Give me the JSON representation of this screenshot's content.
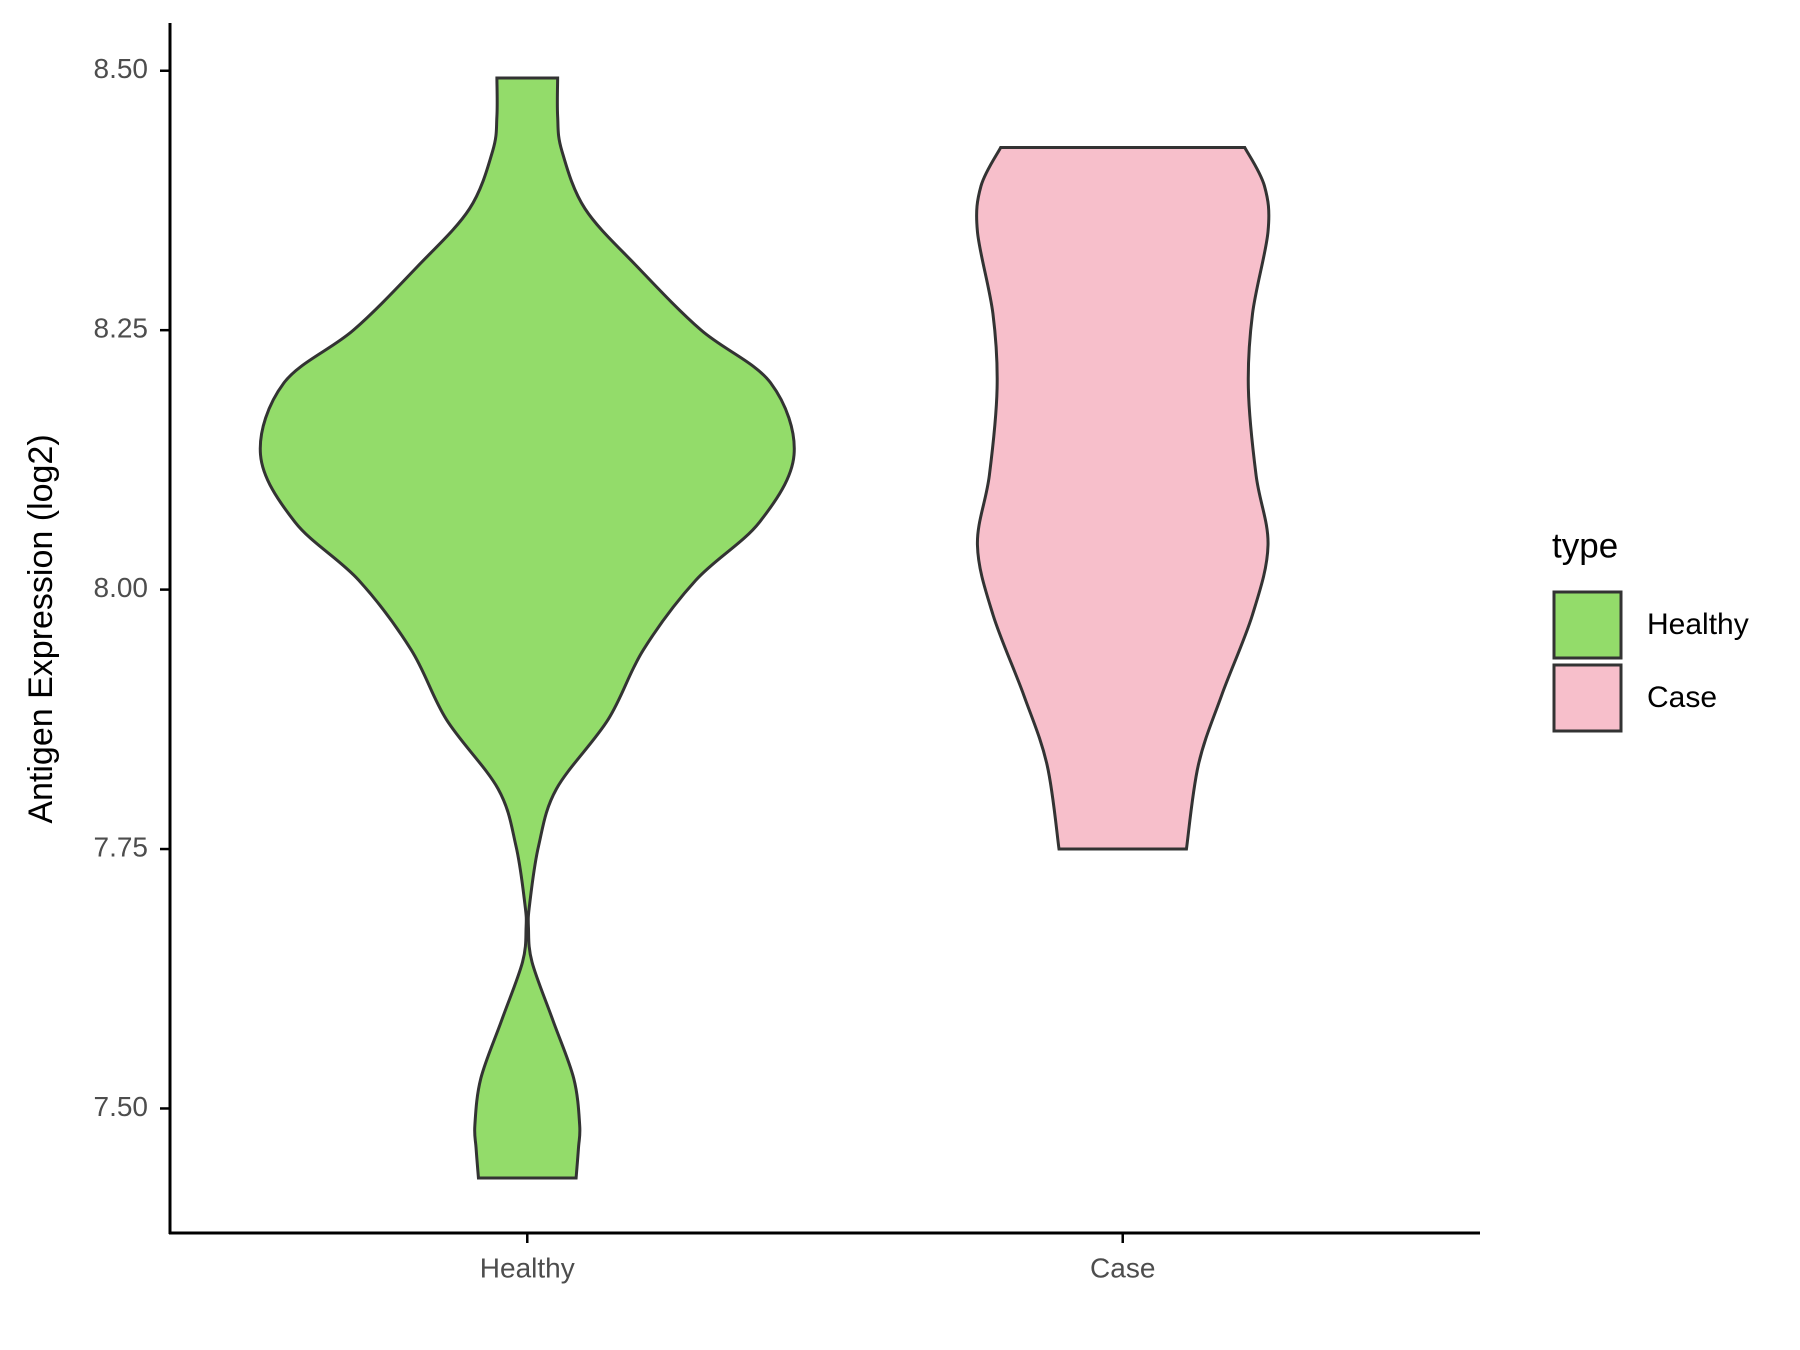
{
  "chart_data": {
    "type": "violin",
    "y_label": "Antigen Expression (log2)",
    "categories": [
      "Healthy",
      "Case"
    ],
    "ylim": [
      7.38,
      8.546
    ],
    "yticks": [
      {
        "value": 7.5,
        "label": "7.50"
      },
      7.75,
      {
        "value": 8.0,
        "label": "8.00"
      },
      8.25,
      {
        "value": 8.5,
        "label": "8.50"
      }
    ],
    "legend_title": "type",
    "series": [
      {
        "name": "Healthy",
        "color": "#93dc6a",
        "y": [
          8.493,
          8.456,
          8.423,
          8.367,
          8.311,
          8.25,
          8.199,
          8.13,
          8.065,
          8.009,
          7.942,
          7.875,
          7.808,
          7.753,
          7.697,
          7.674,
          7.641,
          7.585,
          7.529,
          7.484,
          7.462,
          7.433
        ],
        "width": [
          0.051,
          0.051,
          0.058,
          0.097,
          0.185,
          0.292,
          0.409,
          0.448,
          0.39,
          0.283,
          0.195,
          0.136,
          0.049,
          0.019,
          0.004,
          0.002,
          0.008,
          0.043,
          0.078,
          0.088,
          0.086,
          0.082
        ]
      },
      {
        "name": "Case",
        "color": "#f7bfcb",
        "y": [
          8.426,
          8.389,
          8.345,
          8.266,
          8.194,
          8.11,
          8.043,
          7.976,
          7.898,
          7.831,
          7.75
        ],
        "width": [
          0.205,
          0.238,
          0.244,
          0.218,
          0.211,
          0.224,
          0.244,
          0.218,
          0.166,
          0.127,
          0.107
        ]
      }
    ]
  }
}
